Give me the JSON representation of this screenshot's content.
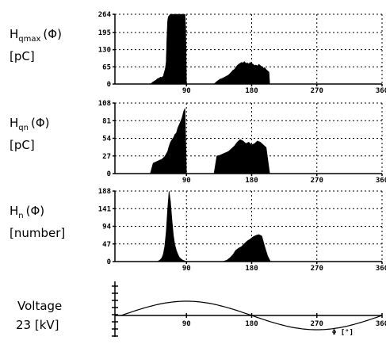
{
  "chart_data": [
    {
      "type": "area",
      "label_lines": [
        "H qmax (Φ)",
        "[pC]"
      ],
      "label_main": "H",
      "label_sub": "qmax",
      "label_arg": "(Φ)",
      "unit": "[pC]",
      "yticks": [
        "264",
        "195",
        "130",
        "65",
        "0"
      ],
      "ytick_values": [
        264,
        195,
        130,
        65,
        0
      ],
      "ylim": [
        0,
        264
      ],
      "xlim": [
        0,
        360
      ],
      "xticks": [
        "90",
        "180",
        "270",
        "360"
      ],
      "grid": true,
      "series": [
        {
          "x": [
            40,
            44,
            48,
            50,
            52,
            54,
            56,
            58,
            60,
            61,
            62,
            63,
            64,
            65,
            66,
            67,
            68,
            69,
            70,
            71,
            72,
            73,
            74,
            75,
            76,
            77,
            78,
            79,
            80,
            81,
            82,
            83,
            84,
            85,
            86,
            87,
            88,
            89,
            90,
            140,
            146,
            152,
            158,
            162,
            166,
            168,
            170,
            172,
            174,
            176,
            180
          ],
          "y": [
            0,
            8,
            15,
            20,
            22,
            26,
            25,
            30,
            50,
            60,
            85,
            180,
            240,
            255,
            258,
            262,
            264,
            264,
            264,
            264,
            264,
            264,
            264,
            264,
            264,
            264,
            264,
            264,
            264,
            264,
            264,
            264,
            264,
            264,
            264,
            264,
            264,
            210,
            0,
            0,
            0,
            0,
            0,
            0,
            0,
            0,
            0,
            0,
            0,
            0,
            0
          ]
        },
        {
          "x": [
            128,
            132,
            136,
            140,
            144,
            148,
            150,
            152,
            154,
            156,
            158,
            160,
            162,
            164,
            166,
            168,
            170,
            172,
            174,
            176,
            178,
            180,
            182,
            184,
            186,
            188,
            190,
            192,
            194,
            196,
            198,
            200,
            202,
            204,
            205
          ],
          "y": [
            0,
            10,
            18,
            22,
            28,
            34,
            40,
            45,
            52,
            55,
            62,
            70,
            75,
            78,
            82,
            80,
            85,
            78,
            80,
            76,
            82,
            78,
            75,
            70,
            72,
            68,
            75,
            70,
            66,
            60,
            62,
            55,
            50,
            45,
            0
          ]
        }
      ]
    },
    {
      "type": "area",
      "label_main": "H",
      "label_sub": "qn",
      "label_arg": "(Φ)",
      "unit": "[pC]",
      "yticks": [
        "108",
        "81",
        "54",
        "27",
        "0"
      ],
      "ytick_values": [
        108,
        81,
        54,
        27,
        0
      ],
      "ylim": [
        0,
        108
      ],
      "xlim": [
        0,
        360
      ],
      "xticks": [
        "90",
        "180",
        "270",
        "360"
      ],
      "grid": true,
      "series": [
        {
          "x": [
            40,
            44,
            48,
            52,
            56,
            58,
            60,
            62,
            64,
            66,
            68,
            70,
            72,
            74,
            76,
            78,
            80,
            82,
            84,
            86,
            88,
            90
          ],
          "y": [
            0,
            16,
            18,
            20,
            22,
            24,
            26,
            30,
            34,
            42,
            48,
            52,
            55,
            60,
            62,
            70,
            75,
            80,
            86,
            95,
            100,
            0
          ]
        },
        {
          "x": [
            128,
            132,
            136,
            140,
            144,
            148,
            152,
            156,
            160,
            164,
            168,
            172,
            176,
            180,
            184,
            188,
            192,
            196,
            200,
            205
          ],
          "y": [
            0,
            27,
            28,
            30,
            32,
            34,
            38,
            42,
            48,
            52,
            50,
            46,
            48,
            44,
            46,
            50,
            48,
            44,
            40,
            0
          ]
        }
      ]
    },
    {
      "type": "area",
      "label_main": "H",
      "label_sub": "n",
      "label_arg": "(Φ)",
      "unit": "[number]",
      "yticks": [
        "188",
        "141",
        "94",
        "47",
        "0"
      ],
      "ytick_values": [
        188,
        141,
        94,
        47,
        0
      ],
      "ylim": [
        0,
        188
      ],
      "xlim": [
        0,
        360
      ],
      "xticks": [
        "90",
        "180",
        "270",
        "360"
      ],
      "grid": true,
      "series": [
        {
          "x": [
            50,
            54,
            56,
            58,
            60,
            62,
            64,
            66,
            68,
            70,
            72,
            74,
            76,
            78,
            80,
            82,
            84,
            86,
            88,
            90
          ],
          "y": [
            0,
            5,
            10,
            20,
            40,
            80,
            140,
            188,
            160,
            110,
            70,
            45,
            30,
            20,
            12,
            8,
            5,
            3,
            2,
            0
          ]
        },
        {
          "x": [
            140,
            146,
            150,
            154,
            158,
            162,
            166,
            170,
            174,
            178,
            182,
            186,
            190,
            194,
            198,
            202,
            206
          ],
          "y": [
            0,
            4,
            10,
            18,
            30,
            36,
            40,
            48,
            55,
            60,
            66,
            70,
            72,
            68,
            40,
            15,
            0
          ]
        }
      ]
    },
    {
      "type": "line",
      "label_lines": [
        "Voltage",
        "23 [kV]"
      ],
      "xlim": [
        0,
        360
      ],
      "xticks": [
        "90",
        "180",
        "270",
        "360"
      ],
      "xlabel": "Φ [°]",
      "ylim": [
        -1,
        1
      ],
      "grid": false,
      "series": [
        {
          "name": "",
          "function": "sine",
          "amplitude": 1,
          "period": 360
        }
      ]
    }
  ]
}
